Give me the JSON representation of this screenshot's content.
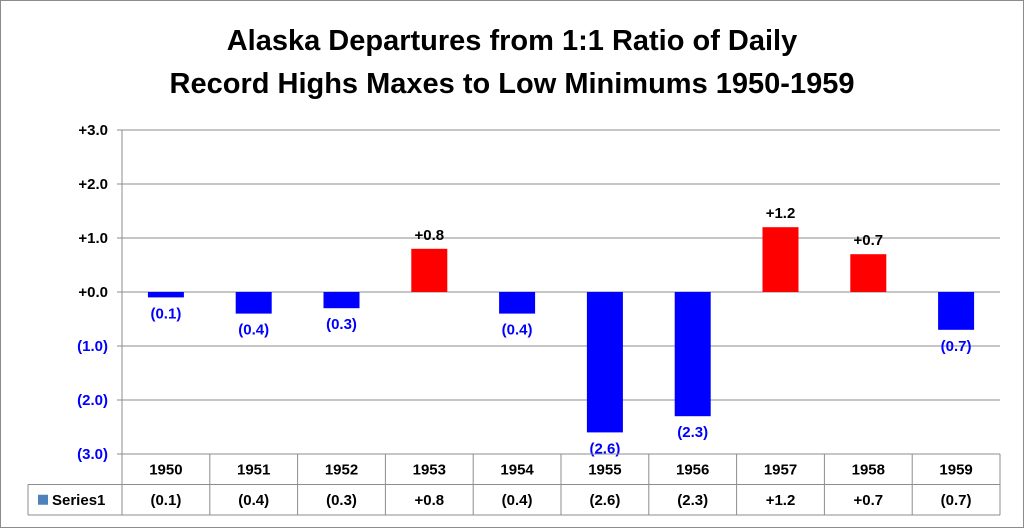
{
  "chart_data": {
    "type": "bar",
    "title_lines": [
      "Alaska Departures from 1:1 Ratio of Daily",
      "Record Highs Maxes to Low Minimums 1950-1959"
    ],
    "categories": [
      "1950",
      "1951",
      "1952",
      "1953",
      "1954",
      "1955",
      "1956",
      "1957",
      "1958",
      "1959"
    ],
    "series": [
      {
        "name": "Series1",
        "values": [
          -0.1,
          -0.4,
          -0.3,
          0.8,
          -0.4,
          -2.6,
          -2.3,
          1.2,
          0.7,
          -0.7
        ],
        "labels": [
          "(0.1)",
          "(0.4)",
          "(0.3)",
          "+0.8",
          "(0.4)",
          "(2.6)",
          "(2.3)",
          "+1.2",
          "+0.7",
          "(0.7)"
        ]
      }
    ],
    "ylim": [
      -3.0,
      3.0
    ],
    "yticks": [
      3.0,
      2.0,
      1.0,
      0.0,
      -1.0,
      -2.0,
      -3.0
    ],
    "ytick_labels": [
      "+3.0",
      "+2.0",
      "+1.0",
      "+0.0",
      "(1.0)",
      "(2.0)",
      "(3.0)"
    ],
    "grid": true,
    "data_table": true,
    "colors": {
      "positive": "#ff0000",
      "negative": "#0000ff",
      "positive_label": "#000000",
      "negative_label": "#0000ff",
      "legend_key": "#4f81bd",
      "grid": "#8c8c8c"
    }
  }
}
